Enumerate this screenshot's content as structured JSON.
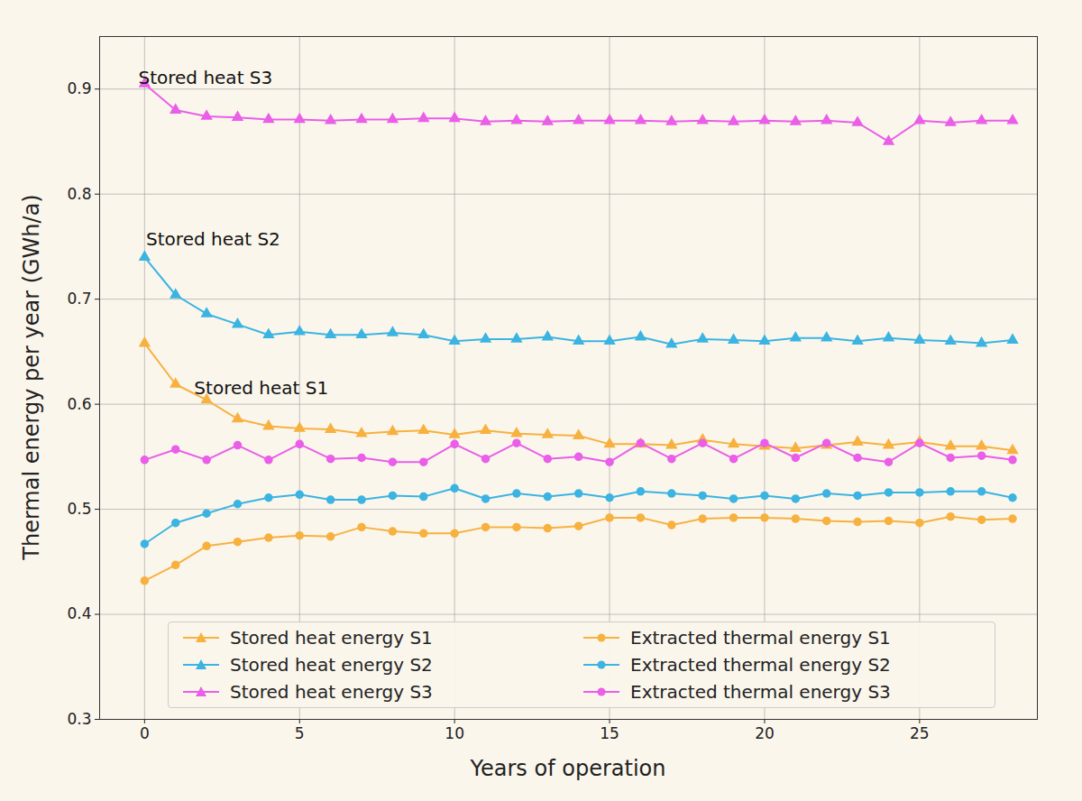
{
  "chart_data": {
    "type": "line",
    "xlabel": "Years of operation",
    "ylabel": "Thermal energy per year (GWh/a)",
    "x": [
      0,
      1,
      2,
      3,
      4,
      5,
      6,
      7,
      8,
      9,
      10,
      11,
      12,
      13,
      14,
      15,
      16,
      17,
      18,
      19,
      20,
      21,
      22,
      23,
      24,
      25,
      26,
      27,
      28
    ],
    "xlim": [
      -1.45,
      28.8
    ],
    "ylim": [
      0.3,
      0.95
    ],
    "xticks": [
      0,
      5,
      10,
      15,
      20,
      25
    ],
    "yticks": [
      0.3,
      0.4,
      0.5,
      0.6,
      0.7,
      0.8,
      0.9
    ],
    "grid": true,
    "legend": "lower center",
    "annotations": [
      {
        "text": "Stored heat S3",
        "x": -0.2,
        "y": 0.91
      },
      {
        "text": "Stored heat S2",
        "x": 0.05,
        "y": 0.757
      },
      {
        "text": "Stored heat S1",
        "x": 1.6,
        "y": 0.615
      }
    ],
    "series": [
      {
        "name": "Stored heat energy S1",
        "color": "#f7b13f",
        "marker": "triangle",
        "values": [
          0.658,
          0.619,
          0.604,
          0.586,
          0.579,
          0.577,
          0.576,
          0.572,
          0.574,
          0.575,
          0.571,
          0.575,
          0.572,
          0.571,
          0.57,
          0.562,
          0.562,
          0.561,
          0.566,
          0.562,
          0.56,
          0.558,
          0.561,
          0.564,
          0.561,
          0.564,
          0.56,
          0.56,
          0.556
        ]
      },
      {
        "name": "Stored heat energy S2",
        "color": "#3bb4e2",
        "marker": "triangle",
        "values": [
          0.74,
          0.704,
          0.686,
          0.676,
          0.666,
          0.669,
          0.666,
          0.666,
          0.668,
          0.666,
          0.66,
          0.662,
          0.662,
          0.664,
          0.66,
          0.66,
          0.664,
          0.657,
          0.662,
          0.661,
          0.66,
          0.663,
          0.663,
          0.66,
          0.663,
          0.661,
          0.66,
          0.658,
          0.661
        ]
      },
      {
        "name": "Stored heat energy S3",
        "color": "#ea5ee8",
        "marker": "triangle",
        "values": [
          0.905,
          0.88,
          0.874,
          0.873,
          0.871,
          0.871,
          0.87,
          0.871,
          0.871,
          0.872,
          0.872,
          0.869,
          0.87,
          0.869,
          0.87,
          0.87,
          0.87,
          0.869,
          0.87,
          0.869,
          0.87,
          0.869,
          0.87,
          0.868,
          0.85,
          0.87,
          0.868,
          0.87,
          0.87
        ]
      },
      {
        "name": "Extracted thermal energy S1",
        "color": "#f7b13f",
        "marker": "circle",
        "values": [
          0.432,
          0.447,
          0.465,
          0.469,
          0.473,
          0.475,
          0.474,
          0.483,
          0.479,
          0.477,
          0.477,
          0.483,
          0.483,
          0.482,
          0.484,
          0.492,
          0.492,
          0.485,
          0.491,
          0.492,
          0.492,
          0.491,
          0.489,
          0.488,
          0.489,
          0.487,
          0.493,
          0.49,
          0.491
        ]
      },
      {
        "name": "Extracted thermal energy S2",
        "color": "#3bb4e2",
        "marker": "circle",
        "values": [
          0.467,
          0.487,
          0.496,
          0.505,
          0.511,
          0.514,
          0.509,
          0.509,
          0.513,
          0.512,
          0.52,
          0.51,
          0.515,
          0.512,
          0.515,
          0.511,
          0.517,
          0.515,
          0.513,
          0.51,
          0.513,
          0.51,
          0.515,
          0.513,
          0.516,
          0.516,
          0.517,
          0.517,
          0.511
        ]
      },
      {
        "name": "Extracted thermal energy S3",
        "color": "#ea5ee8",
        "marker": "circle",
        "values": [
          0.547,
          0.557,
          0.547,
          0.561,
          0.547,
          0.562,
          0.548,
          0.549,
          0.545,
          0.545,
          0.562,
          0.548,
          0.563,
          0.548,
          0.55,
          0.545,
          0.563,
          0.548,
          0.563,
          0.548,
          0.563,
          0.549,
          0.563,
          0.549,
          0.545,
          0.563,
          0.549,
          0.551,
          0.547
        ]
      }
    ]
  }
}
